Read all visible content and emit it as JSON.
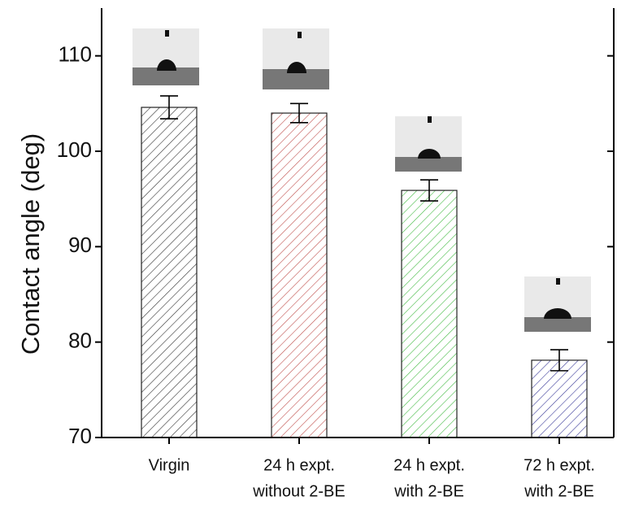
{
  "chart_data": {
    "type": "bar",
    "y_label": "Contact angle (deg)",
    "categories": [
      [
        "Virgin"
      ],
      [
        "24 h expt.",
        "without 2-BE"
      ],
      [
        "24 h expt.",
        "with 2-BE"
      ],
      [
        "72 h expt.",
        "with 2-BE"
      ]
    ],
    "values": [
      104.6,
      104.0,
      95.9,
      78.1
    ],
    "errors": [
      1.2,
      1.0,
      1.1,
      1.1
    ],
    "colors": [
      "#333333",
      "#c0504d",
      "#44bb44",
      "#3a3a99"
    ],
    "ylim": [
      70,
      115
    ],
    "yticks": [
      70,
      80,
      90,
      100,
      110
    ]
  }
}
